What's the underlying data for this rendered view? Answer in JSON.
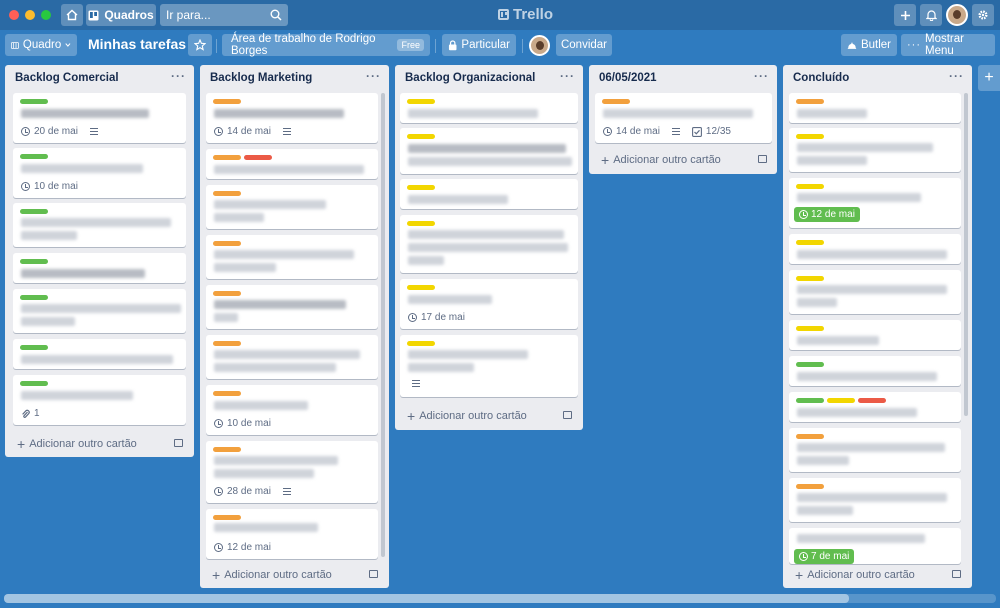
{
  "colors": {
    "green": "#61bd4f",
    "orange": "#f2a03d",
    "red": "#eb5a46",
    "yellow": "#f2d600"
  },
  "topbar": {
    "boards_label": "Quadros",
    "search_placeholder": "Ir para...",
    "logo_text": "Trello"
  },
  "boardbar": {
    "view_label": "Quadro",
    "title": "Minhas tarefas",
    "workspace_label": "Área de trabalho de Rodrigo Borges",
    "workspace_badge": "Free",
    "visibility_label": "Particular",
    "invite_label": "Convidar",
    "butler_label": "Butler",
    "menu_label": "Mostrar Menu"
  },
  "add_card_label": "Adicionar outro cartão",
  "lists": [
    {
      "title": "Backlog Comercial",
      "metas": [
        "20 de mai",
        "10 de mai",
        "1"
      ]
    },
    {
      "title": "Backlog Marketing",
      "metas": [
        "14 de mai",
        "10 de mai",
        "28 de mai",
        "12 de mai"
      ]
    },
    {
      "title": "Backlog Organizacional",
      "metas": [
        "17 de mai"
      ]
    },
    {
      "title": "06/05/2021",
      "metas": [
        "14 de mai",
        "12/35"
      ]
    },
    {
      "title": "Concluído",
      "metas": [
        "12 de mai",
        "7 de mai"
      ]
    }
  ]
}
